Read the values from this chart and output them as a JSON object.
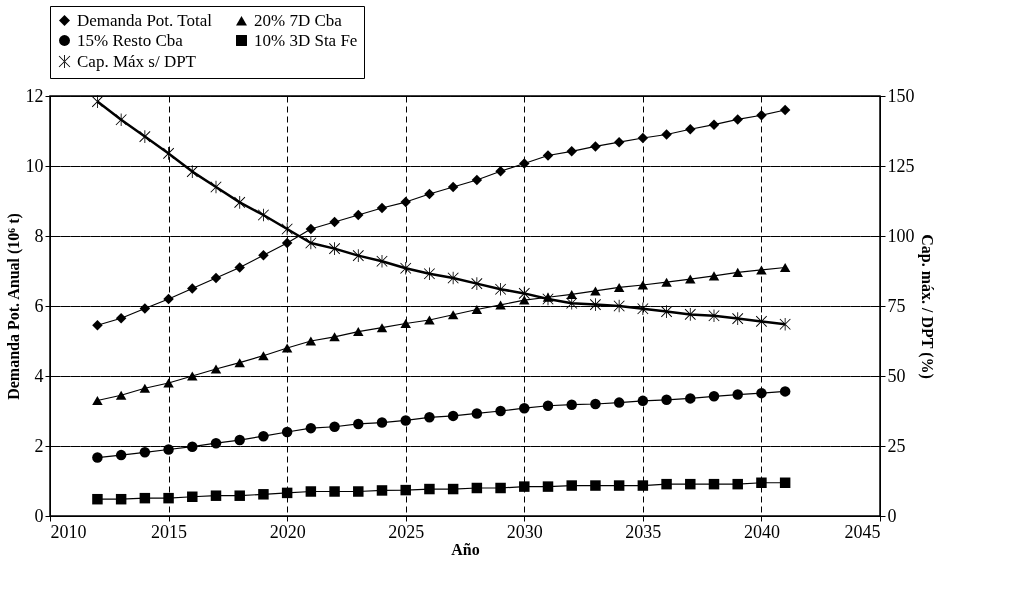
{
  "chart_data": {
    "type": "line",
    "xlabel": "Año",
    "ylabel": "Demanda Pot. Anual (10⁶ t)",
    "y2label": "Cap. máx. / DPT (%)",
    "x": [
      2012,
      2013,
      2014,
      2015,
      2016,
      2017,
      2018,
      2019,
      2020,
      2021,
      2022,
      2023,
      2024,
      2025,
      2026,
      2027,
      2028,
      2029,
      2030,
      2031,
      2032,
      2033,
      2034,
      2035,
      2036,
      2037,
      2038,
      2039,
      2040,
      2041
    ],
    "xlim": [
      2010,
      2045
    ],
    "xticks": [
      2010,
      2015,
      2020,
      2025,
      2030,
      2035,
      2040,
      2045
    ],
    "ylim": [
      0,
      12
    ],
    "yticks": [
      0,
      2,
      4,
      6,
      8,
      10,
      12
    ],
    "y2lim": [
      0,
      150
    ],
    "y2ticks": [
      0,
      25,
      50,
      75,
      100,
      125,
      150
    ],
    "grid": true,
    "legend": "top",
    "line_style": "solid",
    "series": [
      {
        "name": "Demanda Pot. Total",
        "color": "#000000",
        "marker": "diamond",
        "values": [
          5.45,
          5.65,
          5.93,
          6.2,
          6.5,
          6.8,
          7.1,
          7.45,
          7.8,
          8.2,
          8.4,
          8.6,
          8.8,
          8.97,
          9.2,
          9.4,
          9.6,
          9.85,
          10.07,
          10.3,
          10.42,
          10.56,
          10.68,
          10.8,
          10.9,
          11.05,
          11.18,
          11.33,
          11.45,
          11.6
        ]
      },
      {
        "name": "20% 7D Cba",
        "color": "#000000",
        "marker": "triangle",
        "values": [
          3.3,
          3.45,
          3.65,
          3.8,
          4.0,
          4.2,
          4.38,
          4.58,
          4.8,
          5.0,
          5.12,
          5.27,
          5.38,
          5.5,
          5.6,
          5.75,
          5.9,
          6.03,
          6.17,
          6.25,
          6.33,
          6.43,
          6.53,
          6.6,
          6.68,
          6.77,
          6.86,
          6.96,
          7.03,
          7.1
        ]
      },
      {
        "name": "15% Resto Cba",
        "color": "#000000",
        "marker": "circle",
        "values": [
          1.67,
          1.74,
          1.82,
          1.9,
          1.98,
          2.08,
          2.17,
          2.28,
          2.4,
          2.51,
          2.55,
          2.63,
          2.67,
          2.73,
          2.82,
          2.86,
          2.93,
          3.0,
          3.08,
          3.15,
          3.18,
          3.2,
          3.24,
          3.29,
          3.32,
          3.36,
          3.42,
          3.47,
          3.51,
          3.56
        ]
      },
      {
        "name": "10% 3D Sta Fe",
        "color": "#000000",
        "marker": "square",
        "values": [
          0.48,
          0.48,
          0.51,
          0.51,
          0.55,
          0.58,
          0.58,
          0.62,
          0.66,
          0.7,
          0.7,
          0.7,
          0.73,
          0.74,
          0.77,
          0.77,
          0.8,
          0.8,
          0.84,
          0.84,
          0.87,
          0.87,
          0.87,
          0.87,
          0.91,
          0.91,
          0.91,
          0.91,
          0.95,
          0.95
        ]
      },
      {
        "name": "Cap. Máx s/ DPT",
        "color": "#000000",
        "marker": "cross",
        "axis": "y2",
        "values": [
          148,
          141.5,
          135.5,
          129.5,
          123,
          117.5,
          112,
          107.5,
          102.5,
          97.5,
          95.5,
          93,
          91,
          88.5,
          86.5,
          85,
          83,
          81,
          79.5,
          77.5,
          76,
          75.5,
          75,
          74,
          73,
          72,
          71.5,
          70.5,
          69.5,
          68.5
        ]
      }
    ]
  }
}
